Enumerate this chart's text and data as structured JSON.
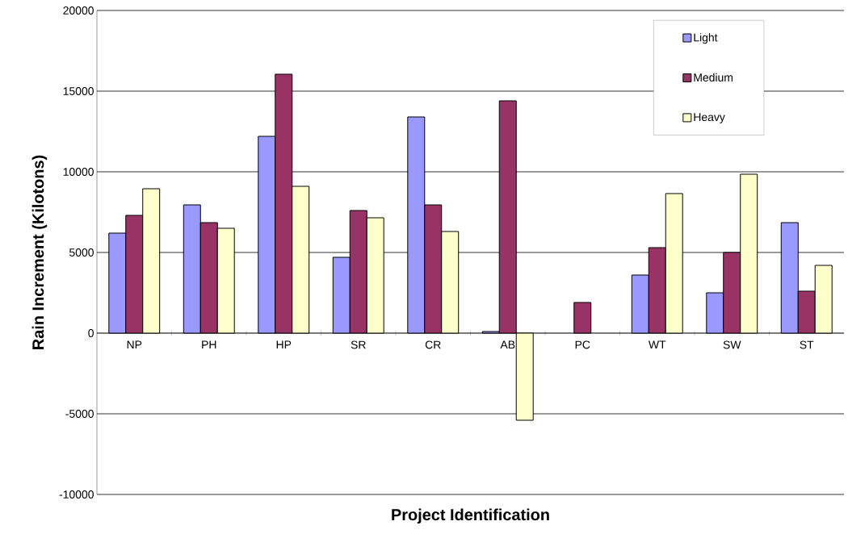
{
  "chart_data": {
    "type": "bar",
    "xlabel": "Project Identification",
    "ylabel": "Rain Increment (Kilotons)",
    "categories": [
      "NP",
      "PH",
      "HP",
      "SR",
      "CR",
      "AB",
      "PC",
      "WT",
      "SW",
      "ST"
    ],
    "series": [
      {
        "name": "Light",
        "color": "#9999ff",
        "values": [
          6200,
          7950,
          12200,
          4700,
          13400,
          100,
          null,
          3600,
          2500,
          6850
        ]
      },
      {
        "name": "Medium",
        "color": "#993366",
        "values": [
          7300,
          6850,
          16050,
          7600,
          7950,
          14400,
          1900,
          5300,
          5000,
          2600
        ]
      },
      {
        "name": "Heavy",
        "color": "#ffffcc",
        "values": [
          8950,
          6500,
          9100,
          7150,
          6300,
          -5400,
          null,
          8650,
          9850,
          4200
        ]
      }
    ],
    "ylim": [
      -10000,
      20000
    ],
    "yticks": [
      -10000,
      -5000,
      0,
      5000,
      10000,
      15000,
      20000
    ],
    "grid": "y",
    "legend": "top right"
  }
}
